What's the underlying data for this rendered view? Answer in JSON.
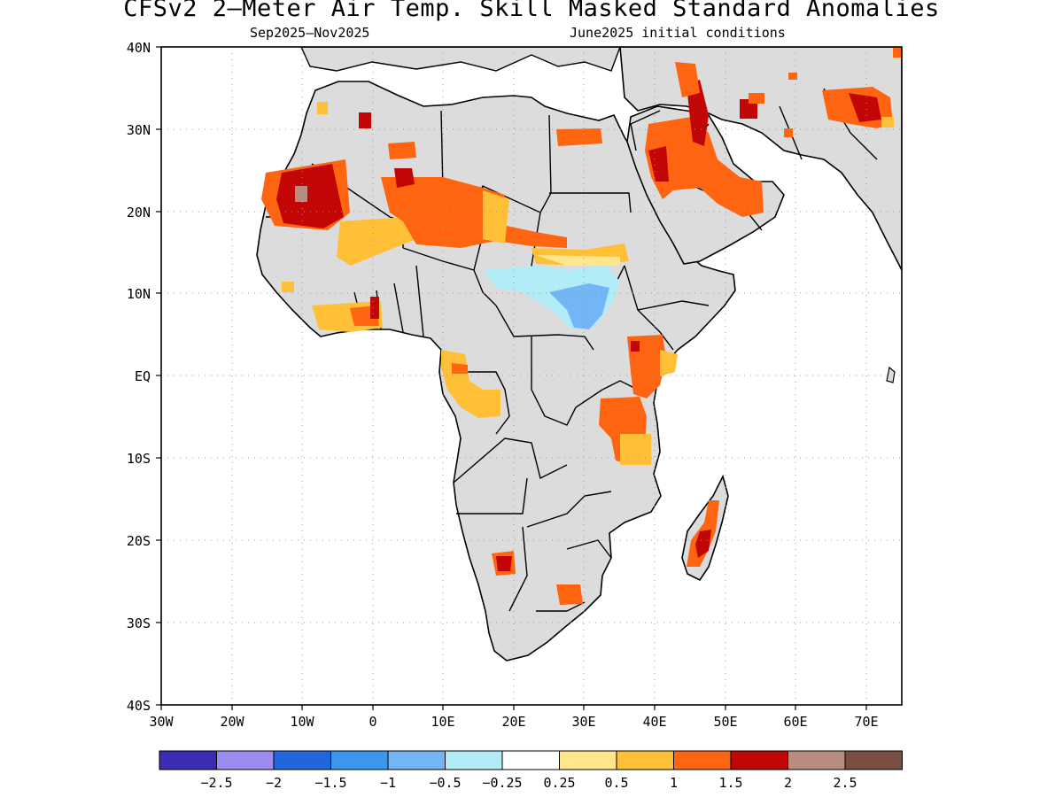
{
  "title": "CFSv2 2—Meter Air Temp. Skill Masked Standard Anomalies",
  "subtitle_left": "Sep2025—Nov2025",
  "subtitle_right": "June2025 initial conditions",
  "map": {
    "y_ticks": [
      "40N",
      "30N",
      "20N",
      "10N",
      "EQ",
      "10S",
      "20S",
      "30S",
      "40S"
    ],
    "x_ticks": [
      "30W",
      "20W",
      "10W",
      "0",
      "10E",
      "20E",
      "30E",
      "40E",
      "50E",
      "60E",
      "70E"
    ],
    "lon_range": [
      -30,
      75
    ],
    "lat_range": [
      -40,
      40
    ],
    "land_color": "#dcdcdc",
    "ocean_color": "#ffffff",
    "gridlines": "dotted"
  },
  "colorbar": {
    "colors": [
      "#3a2db4",
      "#9b8cf2",
      "#2266dd",
      "#3d96ee",
      "#73b6f6",
      "#b2ecf7",
      "#ffffff",
      "#ffe58c",
      "#ffbf36",
      "#ff6410",
      "#c20505",
      "#b88c80",
      "#7a4f42"
    ],
    "labels": [
      "−2.5",
      "−2",
      "−1.5",
      "−1",
      "−0.5",
      "−0.25",
      "0.25",
      "0.5",
      "1",
      "1.5",
      "2",
      "2.5"
    ]
  },
  "anomaly_regions": [
    {
      "lon": -11,
      "lat": 22,
      "value": 2
    },
    {
      "lon": 7,
      "lat": 20,
      "value": 1.5
    },
    {
      "lon": 17,
      "lat": 18,
      "value": 1.5
    },
    {
      "lon": 24,
      "lat": 15,
      "value": 1
    },
    {
      "lon": 30,
      "lat": 8,
      "value": -0.5
    },
    {
      "lon": 42,
      "lat": 25,
      "value": 1.5
    },
    {
      "lon": 46,
      "lat": 30,
      "value": 2
    },
    {
      "lon": 66,
      "lat": 33,
      "value": 1.5
    },
    {
      "lon": 41,
      "lat": 2,
      "value": 1.5
    },
    {
      "lon": 35,
      "lat": -6,
      "value": 1.5
    },
    {
      "lon": 47,
      "lat": -20,
      "value": 2
    },
    {
      "lon": 18,
      "lat": -23,
      "value": 2
    },
    {
      "lon": 28,
      "lat": -27,
      "value": 1.5
    },
    {
      "lon": 14,
      "lat": 0,
      "value": 0.5
    },
    {
      "lon": -2,
      "lat": 6,
      "value": 0.5
    }
  ]
}
